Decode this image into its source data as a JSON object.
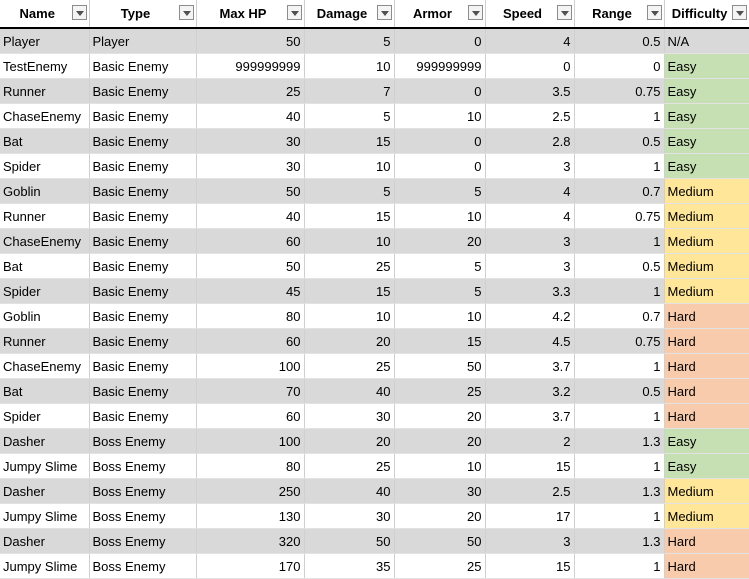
{
  "columns": [
    {
      "label": "Name",
      "key": "name",
      "align": "txt"
    },
    {
      "label": "Type",
      "key": "type",
      "align": "txt"
    },
    {
      "label": "Max HP",
      "key": "hp",
      "align": "num"
    },
    {
      "label": "Damage",
      "key": "damage",
      "align": "num"
    },
    {
      "label": "Armor",
      "key": "armor",
      "align": "num"
    },
    {
      "label": "Speed",
      "key": "speed",
      "align": "num"
    },
    {
      "label": "Range",
      "key": "range",
      "align": "num"
    },
    {
      "label": "Difficulty",
      "key": "difficulty",
      "align": "txt"
    }
  ],
  "rows": [
    {
      "name": "Player",
      "type": "Player",
      "hp": "50",
      "damage": "5",
      "armor": "0",
      "speed": "4",
      "range": "0.5",
      "difficulty": "N/A"
    },
    {
      "name": "TestEnemy",
      "type": "Basic Enemy",
      "hp": "999999999",
      "damage": "10",
      "armor": "999999999",
      "speed": "0",
      "range": "0",
      "difficulty": "Easy"
    },
    {
      "name": "Runner",
      "type": "Basic Enemy",
      "hp": "25",
      "damage": "7",
      "armor": "0",
      "speed": "3.5",
      "range": "0.75",
      "difficulty": "Easy"
    },
    {
      "name": "ChaseEnemy",
      "type": "Basic Enemy",
      "hp": "40",
      "damage": "5",
      "armor": "10",
      "speed": "2.5",
      "range": "1",
      "difficulty": "Easy"
    },
    {
      "name": "Bat",
      "type": "Basic Enemy",
      "hp": "30",
      "damage": "15",
      "armor": "0",
      "speed": "2.8",
      "range": "0.5",
      "difficulty": "Easy"
    },
    {
      "name": "Spider",
      "type": "Basic Enemy",
      "hp": "30",
      "damage": "10",
      "armor": "0",
      "speed": "3",
      "range": "1",
      "difficulty": "Easy"
    },
    {
      "name": "Goblin",
      "type": "Basic Enemy",
      "hp": "50",
      "damage": "5",
      "armor": "5",
      "speed": "4",
      "range": "0.7",
      "difficulty": "Medium"
    },
    {
      "name": "Runner",
      "type": "Basic Enemy",
      "hp": "40",
      "damage": "15",
      "armor": "10",
      "speed": "4",
      "range": "0.75",
      "difficulty": "Medium"
    },
    {
      "name": "ChaseEnemy",
      "type": "Basic Enemy",
      "hp": "60",
      "damage": "10",
      "armor": "20",
      "speed": "3",
      "range": "1",
      "difficulty": "Medium"
    },
    {
      "name": "Bat",
      "type": "Basic Enemy",
      "hp": "50",
      "damage": "25",
      "armor": "5",
      "speed": "3",
      "range": "0.5",
      "difficulty": "Medium"
    },
    {
      "name": "Spider",
      "type": "Basic Enemy",
      "hp": "45",
      "damage": "15",
      "armor": "5",
      "speed": "3.3",
      "range": "1",
      "difficulty": "Medium"
    },
    {
      "name": "Goblin",
      "type": "Basic Enemy",
      "hp": "80",
      "damage": "10",
      "armor": "10",
      "speed": "4.2",
      "range": "0.7",
      "difficulty": "Hard"
    },
    {
      "name": "Runner",
      "type": "Basic Enemy",
      "hp": "60",
      "damage": "20",
      "armor": "15",
      "speed": "4.5",
      "range": "0.75",
      "difficulty": "Hard"
    },
    {
      "name": "ChaseEnemy",
      "type": "Basic Enemy",
      "hp": "100",
      "damage": "25",
      "armor": "50",
      "speed": "3.7",
      "range": "1",
      "difficulty": "Hard"
    },
    {
      "name": "Bat",
      "type": "Basic Enemy",
      "hp": "70",
      "damage": "40",
      "armor": "25",
      "speed": "3.2",
      "range": "0.5",
      "difficulty": "Hard"
    },
    {
      "name": "Spider",
      "type": "Basic Enemy",
      "hp": "60",
      "damage": "30",
      "armor": "20",
      "speed": "3.7",
      "range": "1",
      "difficulty": "Hard"
    },
    {
      "name": "Dasher",
      "type": "Boss Enemy",
      "hp": "100",
      "damage": "20",
      "armor": "20",
      "speed": "2",
      "range": "1.3",
      "difficulty": "Easy"
    },
    {
      "name": "Jumpy Slime",
      "type": "Boss Enemy",
      "hp": "80",
      "damage": "25",
      "armor": "10",
      "speed": "15",
      "range": "1",
      "difficulty": "Easy"
    },
    {
      "name": "Dasher",
      "type": "Boss Enemy",
      "hp": "250",
      "damage": "40",
      "armor": "30",
      "speed": "2.5",
      "range": "1.3",
      "difficulty": "Medium"
    },
    {
      "name": "Jumpy Slime",
      "type": "Boss Enemy",
      "hp": "130",
      "damage": "30",
      "armor": "20",
      "speed": "17",
      "range": "1",
      "difficulty": "Medium"
    },
    {
      "name": "Dasher",
      "type": "Boss Enemy",
      "hp": "320",
      "damage": "50",
      "armor": "50",
      "speed": "3",
      "range": "1.3",
      "difficulty": "Hard"
    },
    {
      "name": "Jumpy Slime",
      "type": "Boss Enemy",
      "hp": "170",
      "damage": "35",
      "armor": "25",
      "speed": "15",
      "range": "1",
      "difficulty": "Hard"
    }
  ],
  "difficulty_colors": {
    "Easy": "#c6e0b4",
    "Medium": "#ffe699",
    "Hard": "#f8cbad",
    "N/A": "none"
  },
  "shade_color": "#d9d9d9",
  "filter_icon": "dropdown-filter-icon"
}
